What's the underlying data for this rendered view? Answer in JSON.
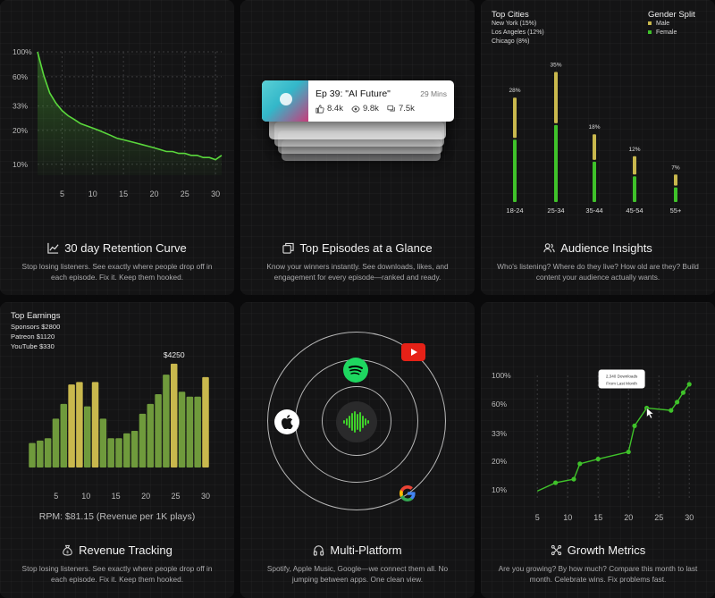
{
  "colors": {
    "background": "#0a0a0b",
    "card": "#141415",
    "green": "#3fc22a",
    "gold": "#c9b84d",
    "olive_green": "#6f9a3c",
    "curve_green": "#5ad83c",
    "youtube_red": "#e62117",
    "spotify_green": "#1ed760"
  },
  "retention": {
    "title": "30 day Retention Curve",
    "icon": "line-chart-icon",
    "description": "Stop losing listeners. See exactly where people drop off in each episode. Fix it. Keep them hooked."
  },
  "episodes": {
    "title": "Top Episodes at a Glance",
    "icon": "stack-icon",
    "description": "Know your winners instantly. See downloads, likes, and engagement for every episode—ranked and ready.",
    "top_episode": {
      "title": "Ep 39: \"AI Future\"",
      "duration": "29 Mins",
      "likes": "8.4k",
      "views": "9.8k",
      "comments": "7.5k"
    }
  },
  "audience": {
    "title": "Audience Insights",
    "icon": "users-icon",
    "description": "Who's listening? Where do they live? How old are they? Build content your audience actually wants.",
    "cities_heading": "Top Cities",
    "cities": [
      "New York (15%)",
      "Los Angeles (12%)",
      "Chicago (8%)"
    ],
    "gender_heading": "Gender Split",
    "genders": [
      "Male",
      "Female"
    ]
  },
  "revenue": {
    "title": "Revenue Tracking",
    "icon": "money-bag-icon",
    "description": "Stop losing listeners. See exactly where people drop off in each episode. Fix it. Keep them hooked.",
    "earnings_heading": "Top Earnings",
    "earnings": [
      "Sponsors $2800",
      "Patreon $1120",
      "YouTube $330"
    ],
    "rpm": "RPM: $81.15 (Revenue per 1K plays)"
  },
  "platform": {
    "title": "Multi-Platform",
    "icon": "headphones-icon",
    "description": "Spotify, Apple Music, Google—we connect them all. No jumping between apps. One clean view.",
    "platforms": [
      "spotify-icon",
      "youtube-icon",
      "apple-icon",
      "google-icon"
    ]
  },
  "growth": {
    "title": "Growth Metrics",
    "icon": "growth-icon",
    "description": "Are you growing? By how much? Compare this month to last month. Celebrate wins. Fix problems fast."
  },
  "chart_data": [
    {
      "id": "retention",
      "type": "area",
      "xticks": [
        "5",
        "10",
        "15",
        "20",
        "25",
        "30"
      ],
      "yticks": [
        "100%",
        "60%",
        "33%",
        "20%",
        "10%"
      ],
      "x": [
        1,
        2,
        3,
        4,
        5,
        6,
        7,
        8,
        9,
        10,
        11,
        12,
        13,
        14,
        15,
        16,
        17,
        18,
        19,
        20,
        21,
        22,
        23,
        24,
        25,
        26,
        27,
        28,
        29,
        30,
        31
      ],
      "y": [
        100,
        62,
        43,
        35,
        30,
        27,
        25,
        23,
        22,
        21,
        20,
        19,
        18,
        17,
        16.5,
        16,
        15.5,
        15,
        14.5,
        14,
        13.5,
        13,
        13,
        12.5,
        12.5,
        12,
        12,
        11.5,
        11.5,
        11,
        12
      ],
      "ylim": [
        8,
        100
      ],
      "grid": true
    },
    {
      "id": "audience",
      "type": "bar",
      "stacked": true,
      "categories": [
        "18-24",
        "25-34",
        "35-44",
        "45-54",
        "55+"
      ],
      "data_labels": [
        "28%",
        "35%",
        "18%",
        "12%",
        "7%"
      ],
      "values": [
        28,
        35,
        18,
        12,
        7
      ],
      "series": [
        {
          "values": [
            17,
            21,
            11,
            7,
            4
          ]
        },
        {
          "values": [
            11,
            14,
            7,
            5,
            3
          ]
        }
      ]
    },
    {
      "id": "revenue",
      "type": "bar",
      "xticks": [
        "5",
        "10",
        "15",
        "20",
        "25",
        "30"
      ],
      "annotation": "$4250",
      "values": [
        1000,
        1100,
        1200,
        2000,
        2600,
        3400,
        3500,
        2500,
        3500,
        2000,
        1200,
        1200,
        1400,
        1500,
        2200,
        2600,
        3000,
        3800,
        4250,
        3100,
        2900,
        2900,
        3700
      ],
      "highlighted_indices": [
        5,
        6,
        8,
        18,
        22
      ],
      "ylim": [
        0,
        4500
      ]
    },
    {
      "id": "growth",
      "type": "line",
      "xticks": [
        "5",
        "10",
        "15",
        "20",
        "25",
        "30"
      ],
      "yticks": [
        "100%",
        "60%",
        "33%",
        "20%",
        "10%"
      ],
      "x": [
        5,
        8,
        11,
        12,
        15,
        20,
        21,
        23,
        27,
        28,
        29,
        30
      ],
      "y": [
        5,
        12,
        15,
        28,
        32,
        38,
        60,
        75,
        73,
        80,
        88,
        95
      ],
      "ylim": [
        0,
        110
      ],
      "tooltip": [
        "2,340 Downloads",
        "From Last Month"
      ]
    }
  ]
}
